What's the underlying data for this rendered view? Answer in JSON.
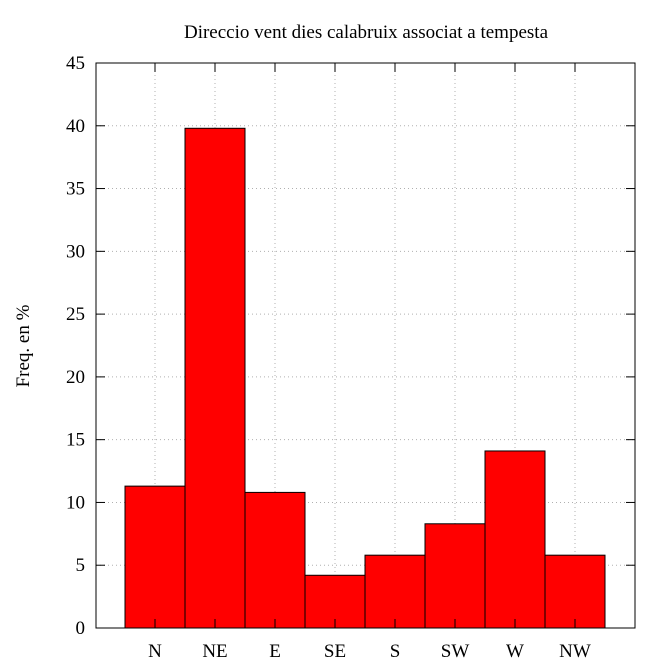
{
  "chart_data": {
    "type": "bar",
    "title": "Direccio vent dies calabruix associat a tempesta",
    "xlabel": "",
    "ylabel": "Freq. en %",
    "categories": [
      "N",
      "NE",
      "E",
      "SE",
      "S",
      "SW",
      "W",
      "NW"
    ],
    "values": [
      11.3,
      39.8,
      10.8,
      4.2,
      5.8,
      8.3,
      14.1,
      5.8
    ],
    "ylim": [
      0,
      45
    ],
    "yticks": [
      "0",
      "5",
      "10",
      "15",
      "20",
      "25",
      "30",
      "35",
      "40",
      "45"
    ],
    "grid": true,
    "bar_color": "#ff0000",
    "bar_edge_color": "#000000",
    "grid_color": "#b0b0b0"
  }
}
